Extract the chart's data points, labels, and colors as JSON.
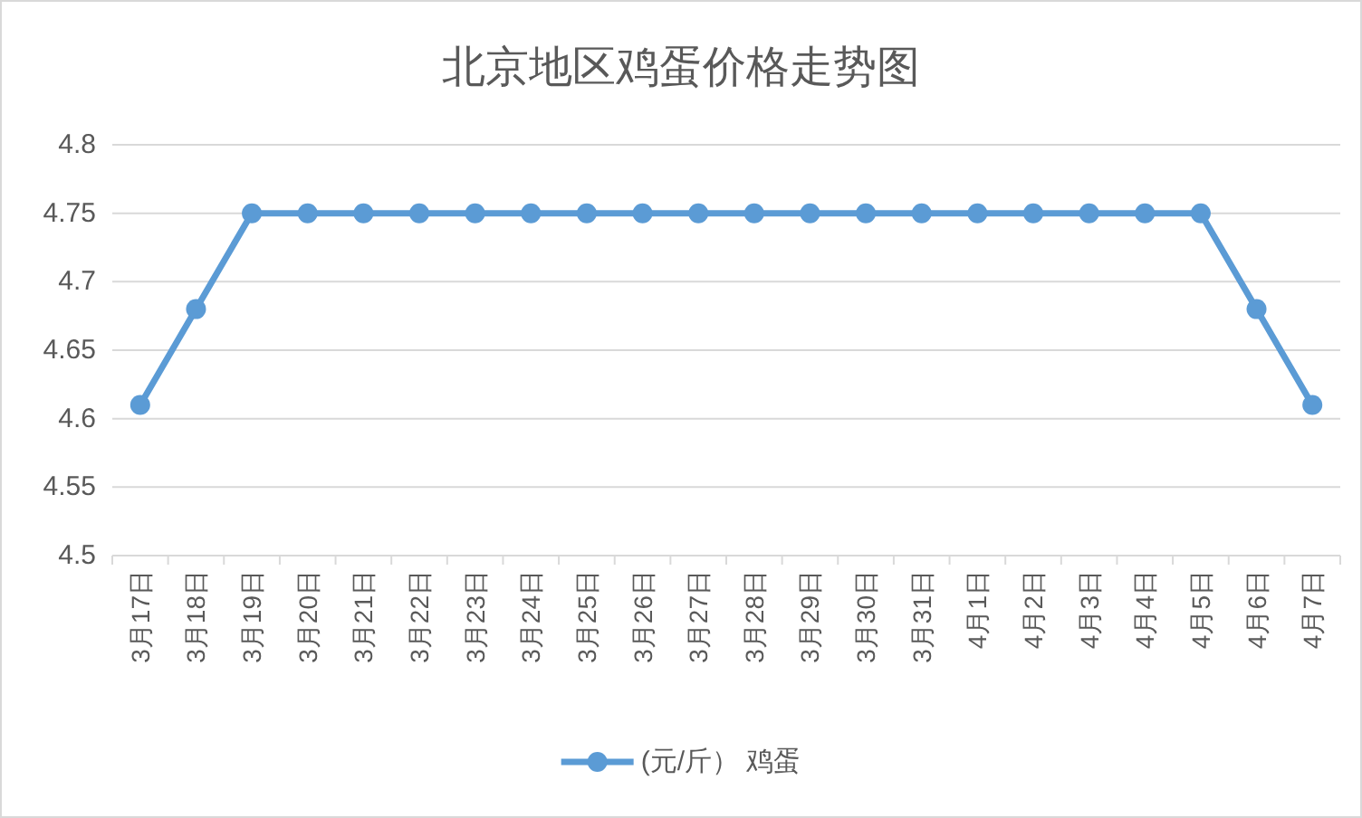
{
  "chart_data": {
    "type": "line",
    "title": "北京地区鸡蛋价格走势图",
    "categories": [
      "3月17日",
      "3月18日",
      "3月19日",
      "3月20日",
      "3月21日",
      "3月22日",
      "3月23日",
      "3月24日",
      "3月25日",
      "3月26日",
      "3月27日",
      "3月28日",
      "3月29日",
      "3月30日",
      "3月31日",
      "4月1日",
      "4月2日",
      "4月3日",
      "4月4日",
      "4月5日",
      "4月6日",
      "4月7日"
    ],
    "series": [
      {
        "name": "(元/斤） 鸡蛋",
        "color": "#5b9bd5",
        "values": [
          4.61,
          4.68,
          4.75,
          4.75,
          4.75,
          4.75,
          4.75,
          4.75,
          4.75,
          4.75,
          4.75,
          4.75,
          4.75,
          4.75,
          4.75,
          4.75,
          4.75,
          4.75,
          4.75,
          4.75,
          4.68,
          4.61
        ]
      }
    ],
    "ylim": [
      4.5,
      4.8
    ],
    "yticks": [
      4.5,
      4.55,
      4.6,
      4.65,
      4.7,
      4.75,
      4.8
    ],
    "grid": "y",
    "legend": "bottom",
    "marker": "circle",
    "line_style": "solid"
  }
}
